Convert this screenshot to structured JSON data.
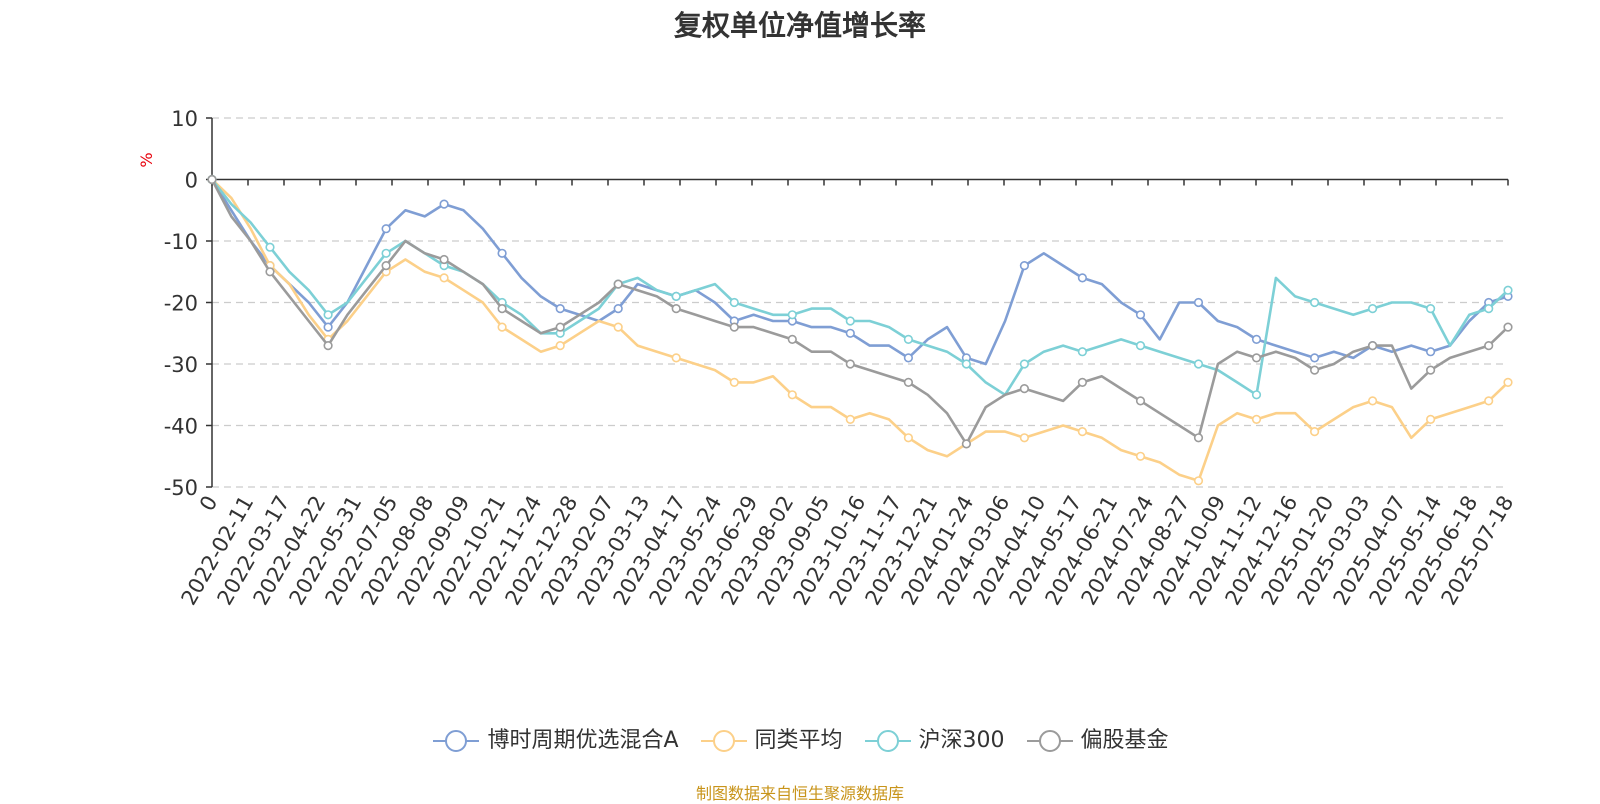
{
  "page": {
    "source_note": "制图数据来自恒生聚源数据库",
    "source_note_color": "#c8941a"
  },
  "chart_data": {
    "type": "line",
    "title": "复权单位净值增长率",
    "ylabel": "%",
    "ylabel_color": "#e8000b",
    "ylim": [
      -50,
      10
    ],
    "yticks": [
      10,
      0,
      -10,
      -20,
      -30,
      -40,
      -50
    ],
    "grid": "horizontal-dashed",
    "legend_position": "bottom",
    "x_tick_labels": [
      "0",
      "2022-02-11",
      "2022-03-17",
      "2022-04-22",
      "2022-05-31",
      "2022-07-05",
      "2022-08-08",
      "2022-09-09",
      "2022-10-21",
      "2022-11-24",
      "2022-12-28",
      "2023-02-07",
      "2023-03-13",
      "2023-04-17",
      "2023-05-24",
      "2023-06-29",
      "2023-08-02",
      "2023-09-05",
      "2023-10-16",
      "2023-11-17",
      "2023-12-21",
      "2024-01-24",
      "2024-03-06",
      "2024-04-10",
      "2024-05-17",
      "2024-06-21",
      "2024-07-24",
      "2024-08-27",
      "2024-10-09",
      "2024-11-12",
      "2024-12-16",
      "2025-01-20",
      "2025-03-03",
      "2025-04-07",
      "2025-05-14",
      "2025-06-18",
      "2025-07-18"
    ],
    "series": [
      {
        "name": "博时周期优选混合A",
        "color": "#7f9ed4",
        "values": [
          0,
          -5,
          -10,
          -14,
          -17,
          -20,
          -24,
          -20,
          -14,
          -8,
          -5,
          -6,
          -4,
          -5,
          -8,
          -12,
          -16,
          -19,
          -21,
          -22,
          -23,
          -21,
          -17,
          -18,
          -19,
          -18,
          -20,
          -23,
          -22,
          -23,
          -23,
          -24,
          -24,
          -25,
          -27,
          -27,
          -29,
          -26,
          -24,
          -29,
          -30,
          -23,
          -14,
          -12,
          -14,
          -16,
          -17,
          -20,
          -22,
          -26,
          -20,
          -20,
          -23,
          -24,
          -26,
          -27,
          -28,
          -29,
          -28,
          -29,
          -27,
          -28,
          -27,
          -28,
          -27,
          -23,
          -20,
          -19
        ]
      },
      {
        "name": "同类平均",
        "color": "#fcd089",
        "values": [
          0,
          -3,
          -8,
          -14,
          -17,
          -22,
          -26,
          -23,
          -19,
          -15,
          -13,
          -15,
          -16,
          -18,
          -20,
          -24,
          -26,
          -28,
          -27,
          -25,
          -23,
          -24,
          -27,
          -28,
          -29,
          -30,
          -31,
          -33,
          -33,
          -32,
          -35,
          -37,
          -37,
          -39,
          -38,
          -39,
          -42,
          -44,
          -45,
          -43,
          -41,
          -41,
          -42,
          -41,
          -40,
          -41,
          -42,
          -44,
          -45,
          -46,
          -48,
          -49,
          -40,
          -38,
          -39,
          -38,
          -38,
          -41,
          -39,
          -37,
          -36,
          -37,
          -42,
          -39,
          -38,
          -37,
          -36,
          -33
        ]
      },
      {
        "name": "沪深300",
        "color": "#7dd0d6",
        "values": [
          0,
          -4,
          -7,
          -11,
          -15,
          -18,
          -22,
          -20,
          -16,
          -12,
          -10,
          -12,
          -14,
          -15,
          -17,
          -20,
          -22,
          -25,
          -25,
          -23,
          -21,
          -17,
          -16,
          -18,
          -19,
          -18,
          -17,
          -20,
          -21,
          -22,
          -22,
          -21,
          -21,
          -23,
          -23,
          -24,
          -26,
          -27,
          -28,
          -30,
          -33,
          -35,
          -30,
          -28,
          -27,
          -28,
          -27,
          -26,
          -27,
          -28,
          -29,
          -30,
          -31,
          -33,
          -35,
          -16,
          -19,
          -20,
          -21,
          -22,
          -21,
          -20,
          -20,
          -21,
          -27,
          -22,
          -21,
          -18
        ]
      },
      {
        "name": "偏股基金",
        "color": "#9b9b9b",
        "values": [
          0,
          -6,
          -10,
          -15,
          -19,
          -23,
          -27,
          -22,
          -18,
          -14,
          -10,
          -12,
          -13,
          -15,
          -17,
          -21,
          -23,
          -25,
          -24,
          -22,
          -20,
          -17,
          -18,
          -19,
          -21,
          -22,
          -23,
          -24,
          -24,
          -25,
          -26,
          -28,
          -28,
          -30,
          -31,
          -32,
          -33,
          -35,
          -38,
          -43,
          -37,
          -35,
          -34,
          -35,
          -36,
          -33,
          -32,
          -34,
          -36,
          -38,
          -40,
          -42,
          -30,
          -28,
          -29,
          -28,
          -29,
          -31,
          -30,
          -28,
          -27,
          -27,
          -34,
          -31,
          -29,
          -28,
          -27,
          -24
        ]
      }
    ]
  }
}
